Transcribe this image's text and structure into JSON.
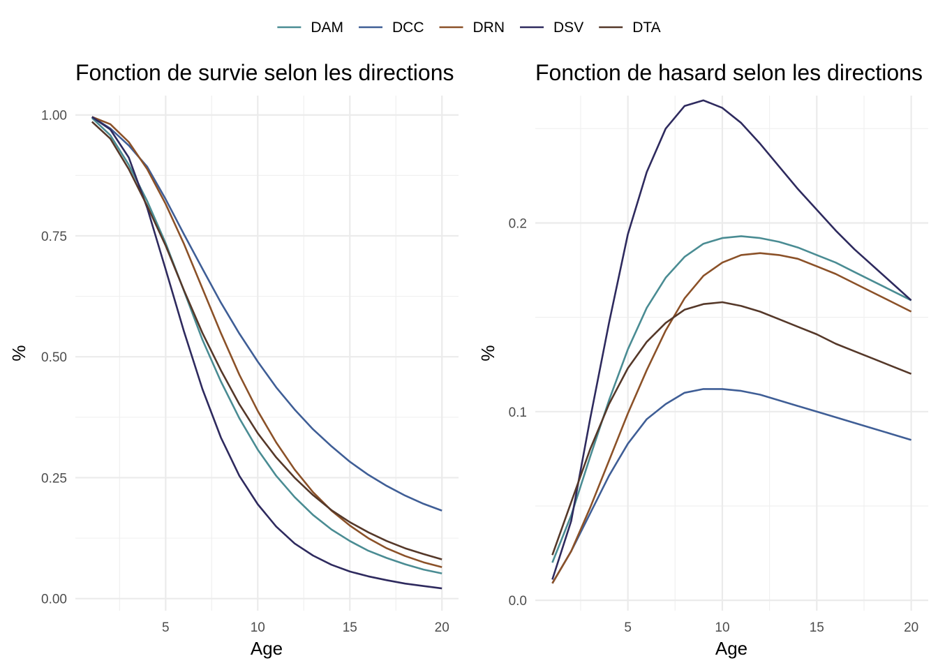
{
  "legend": {
    "position": "top-center",
    "entries": [
      {
        "name": "DAM",
        "color": "#4A8C93"
      },
      {
        "name": "DCC",
        "color": "#3F5E96"
      },
      {
        "name": "DRN",
        "color": "#8B5128"
      },
      {
        "name": "DSV",
        "color": "#2E2A5E"
      },
      {
        "name": "DTA",
        "color": "#553829"
      }
    ]
  },
  "chart_data": [
    {
      "type": "line",
      "title": "Fonction de survie selon les directions",
      "xlabel": "Age",
      "ylabel": "%",
      "xlim": [
        0.1,
        20.9
      ],
      "ylim": [
        -0.025,
        1.04
      ],
      "x_ticks": [
        5,
        10,
        15,
        20
      ],
      "x_tick_labels": [
        "5",
        "10",
        "15",
        "20"
      ],
      "y_ticks": [
        0,
        0.25,
        0.5,
        0.75,
        1.0
      ],
      "y_tick_labels": [
        "0.00",
        "0.25",
        "0.50",
        "0.75",
        "1.00"
      ],
      "grid": true,
      "x": [
        1,
        2,
        3,
        4,
        5,
        6,
        7,
        8,
        9,
        10,
        11,
        12,
        13,
        14,
        15,
        16,
        17,
        18,
        19,
        20
      ],
      "series": [
        {
          "name": "DAM",
          "color": "#4A8C93",
          "values": [
            0.994,
            0.958,
            0.897,
            0.822,
            0.735,
            0.636,
            0.535,
            0.449,
            0.373,
            0.308,
            0.254,
            0.21,
            0.173,
            0.143,
            0.119,
            0.099,
            0.084,
            0.071,
            0.06,
            0.052
          ]
        },
        {
          "name": "DCC",
          "color": "#3F5E96",
          "values": [
            0.996,
            0.972,
            0.937,
            0.893,
            0.826,
            0.753,
            0.682,
            0.612,
            0.548,
            0.49,
            0.437,
            0.391,
            0.35,
            0.315,
            0.283,
            0.256,
            0.233,
            0.213,
            0.196,
            0.182
          ]
        },
        {
          "name": "DRN",
          "color": "#8B5128",
          "values": [
            0.996,
            0.981,
            0.944,
            0.888,
            0.816,
            0.733,
            0.641,
            0.549,
            0.463,
            0.388,
            0.323,
            0.267,
            0.22,
            0.182,
            0.151,
            0.125,
            0.104,
            0.088,
            0.075,
            0.065
          ]
        },
        {
          "name": "DSV",
          "color": "#2E2A5E",
          "values": [
            0.996,
            0.97,
            0.912,
            0.808,
            0.681,
            0.552,
            0.433,
            0.333,
            0.254,
            0.195,
            0.149,
            0.114,
            0.089,
            0.07,
            0.056,
            0.046,
            0.038,
            0.031,
            0.026,
            0.021
          ]
        },
        {
          "name": "DTA",
          "color": "#553829",
          "values": [
            0.986,
            0.951,
            0.888,
            0.812,
            0.73,
            0.637,
            0.549,
            0.472,
            0.402,
            0.342,
            0.292,
            0.25,
            0.214,
            0.183,
            0.158,
            0.137,
            0.119,
            0.104,
            0.092,
            0.081
          ]
        }
      ]
    },
    {
      "type": "line",
      "title": "Fonction de hasard selon les directions",
      "xlabel": "Age",
      "ylabel": "%",
      "xlim": [
        0.1,
        20.9
      ],
      "ylim": [
        -0.0055,
        0.2675
      ],
      "x_ticks": [
        5,
        10,
        15,
        20
      ],
      "x_tick_labels": [
        "5",
        "10",
        "15",
        "20"
      ],
      "y_ticks": [
        0,
        0.1,
        0.2
      ],
      "y_tick_labels": [
        "0.0",
        "0.1",
        "0.2"
      ],
      "grid": true,
      "x": [
        1,
        2,
        3,
        4,
        5,
        6,
        7,
        8,
        9,
        10,
        11,
        12,
        13,
        14,
        15,
        16,
        17,
        18,
        19,
        20
      ],
      "series": [
        {
          "name": "DAM",
          "color": "#4A8C93",
          "values": [
            0.02,
            0.045,
            0.076,
            0.106,
            0.133,
            0.155,
            0.171,
            0.182,
            0.189,
            0.192,
            0.193,
            0.192,
            0.19,
            0.187,
            0.183,
            0.179,
            0.174,
            0.169,
            0.164,
            0.159
          ]
        },
        {
          "name": "DCC",
          "color": "#3F5E96",
          "values": [
            0.009,
            0.026,
            0.046,
            0.066,
            0.083,
            0.096,
            0.104,
            0.11,
            0.112,
            0.112,
            0.111,
            0.109,
            0.106,
            0.103,
            0.1,
            0.097,
            0.094,
            0.091,
            0.088,
            0.085
          ]
        },
        {
          "name": "DRN",
          "color": "#8B5128",
          "values": [
            0.009,
            0.026,
            0.049,
            0.074,
            0.099,
            0.122,
            0.143,
            0.16,
            0.172,
            0.179,
            0.183,
            0.184,
            0.183,
            0.181,
            0.177,
            0.173,
            0.168,
            0.163,
            0.158,
            0.153
          ]
        },
        {
          "name": "DSV",
          "color": "#2E2A5E",
          "values": [
            0.011,
            0.042,
            0.096,
            0.147,
            0.194,
            0.227,
            0.25,
            0.262,
            0.265,
            0.261,
            0.253,
            0.242,
            0.23,
            0.218,
            0.207,
            0.196,
            0.186,
            0.177,
            0.168,
            0.159
          ]
        },
        {
          "name": "DTA",
          "color": "#553829",
          "values": [
            0.024,
            0.052,
            0.08,
            0.104,
            0.123,
            0.137,
            0.147,
            0.154,
            0.157,
            0.158,
            0.156,
            0.153,
            0.149,
            0.145,
            0.141,
            0.136,
            0.132,
            0.128,
            0.124,
            0.12
          ]
        }
      ]
    }
  ]
}
